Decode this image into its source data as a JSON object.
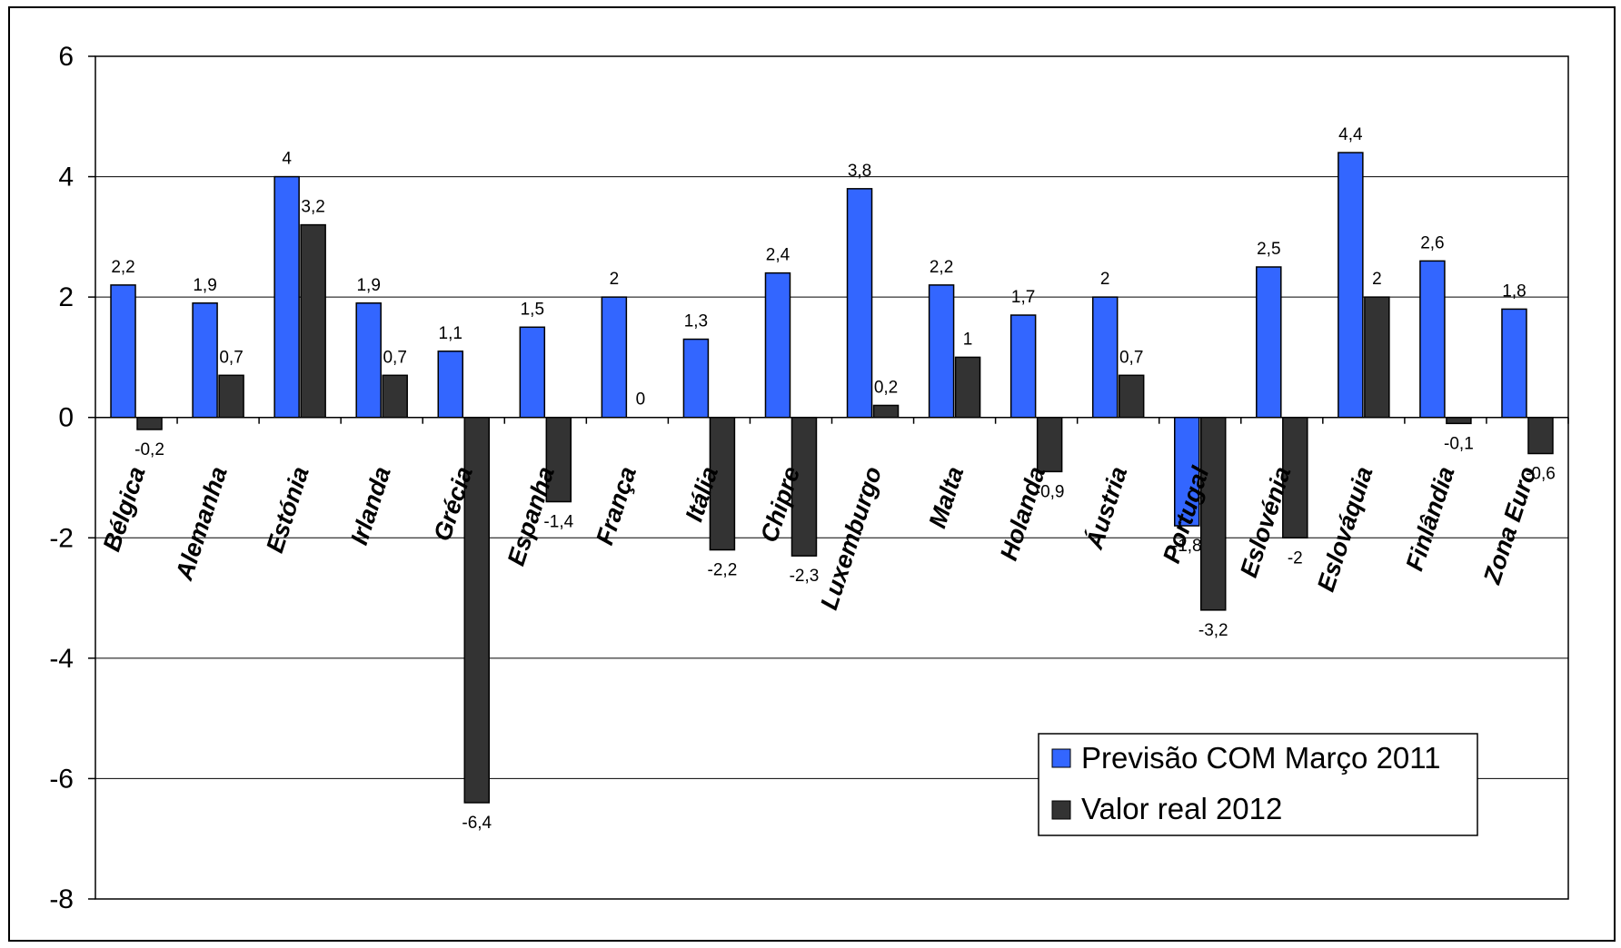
{
  "chart_data": {
    "type": "bar",
    "title": "",
    "xlabel": "",
    "ylabel": "",
    "ylim": [
      -8,
      6
    ],
    "yticks": [
      6,
      4,
      2,
      0,
      -2,
      -4,
      -6,
      -8
    ],
    "ytick_labels": [
      "6",
      "4",
      "2",
      "0",
      "-2",
      "-4",
      "-6",
      "-8"
    ],
    "grid": true,
    "legend_position": "bottom-right",
    "categories": [
      "Bélgica",
      "Alemanha",
      "Estónia",
      "Irlanda",
      "Grécia",
      "Espanha",
      "França",
      "Itália",
      "Chipre",
      "Luxemburgo",
      "Malta",
      "Holanda",
      "Áustria",
      "Portugal",
      "Eslovénia",
      "Eslováquia",
      "Finlândia",
      "Zona Euro"
    ],
    "series": [
      {
        "name": "Previsão COM Março 2011",
        "color": "#3366ff",
        "values": [
          2.2,
          1.9,
          4,
          1.9,
          1.1,
          1.5,
          2,
          1.3,
          2.4,
          3.8,
          2.2,
          1.7,
          2,
          -1.8,
          2.5,
          4.4,
          2.6,
          1.8
        ],
        "labels": [
          "2,2",
          "1,9",
          "4",
          "1,9",
          "1,1",
          "1,5",
          "2",
          "1,3",
          "2,4",
          "3,8",
          "2,2",
          "1,7",
          "2",
          "-1,8",
          "2,5",
          "4,4",
          "2,6",
          "1,8"
        ]
      },
      {
        "name": "Valor real 2012",
        "color": "#333333",
        "values": [
          -0.2,
          0.7,
          3.2,
          0.7,
          -6.4,
          -1.4,
          0,
          -2.2,
          -2.3,
          0.2,
          1,
          -0.9,
          0.7,
          -3.2,
          -2,
          2,
          -0.1,
          -0.6
        ],
        "labels": [
          "-0,2",
          "0,7",
          "3,2",
          "0,7",
          "-6,4",
          "-1,4",
          "0",
          "-2,2",
          "-2,3",
          "0,2",
          "1",
          "-0,9",
          "0,7",
          "-3,2",
          "-2",
          "2",
          "-0,1",
          "-0,6"
        ]
      }
    ]
  }
}
